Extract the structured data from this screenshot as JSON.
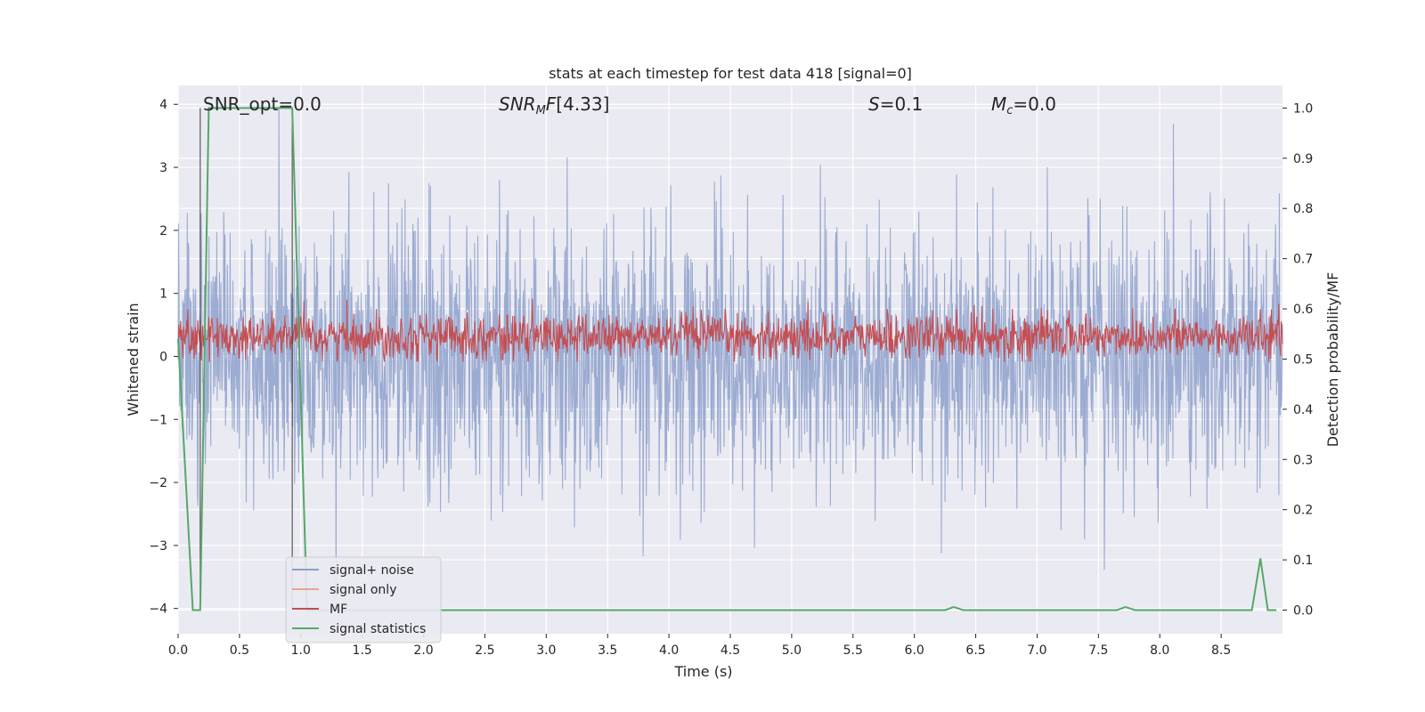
{
  "chart_data": {
    "type": "line",
    "title": "stats at each timestep for test data 418 [signal=0]",
    "xlabel": "Time (s)",
    "ylabel": "Whitened strain",
    "y2label": "Detection probability/MF",
    "xlim": [
      0.0,
      9.0
    ],
    "ylim": [
      -4.4,
      4.3
    ],
    "y2lim": [
      -0.047,
      1.045
    ],
    "xticks": [
      "0.0",
      "0.5",
      "1.0",
      "1.5",
      "2.0",
      "2.5",
      "3.0",
      "3.5",
      "4.0",
      "4.5",
      "5.0",
      "5.5",
      "6.0",
      "6.5",
      "7.0",
      "7.5",
      "8.0",
      "8.5"
    ],
    "yticks": [
      "4",
      "3",
      "2",
      "1",
      "0",
      "−1",
      "−2",
      "−3",
      "−4"
    ],
    "y2ticks": [
      "1.0",
      "0.9",
      "0.8",
      "0.7",
      "0.6",
      "0.5",
      "0.4",
      "0.3",
      "0.2",
      "0.1",
      "0.0"
    ],
    "annotations": {
      "snr_opt": "SNR_opt=0.0",
      "snr_mf": "[4.33]",
      "s": "=0.1",
      "mc": "=0.0"
    },
    "grid": true,
    "legend_position": "lower-left",
    "series": [
      {
        "name": "signal+ noise",
        "color": "#8da0cb",
        "axis": "left",
        "description_values": "noise, roughly uniform, amplitude up to about ±4"
      },
      {
        "name": "signal only",
        "color": "#e8a58a",
        "axis": "left",
        "values": []
      },
      {
        "name": "MF",
        "color": "#c44e52",
        "axis": "right",
        "description_values": "noisy band between about 0.50 and 0.62"
      },
      {
        "name": "signal statistics",
        "color": "#55a868",
        "axis": "right",
        "points": [
          [
            0.0,
            0.54
          ],
          [
            0.12,
            0.0
          ],
          [
            0.18,
            0.0
          ],
          [
            0.25,
            1.0
          ],
          [
            0.93,
            1.0
          ],
          [
            1.05,
            0.0
          ],
          [
            6.25,
            0.0
          ],
          [
            6.32,
            0.006
          ],
          [
            6.4,
            0.0
          ],
          [
            7.65,
            0.0
          ],
          [
            7.72,
            0.006
          ],
          [
            7.8,
            0.0
          ],
          [
            8.75,
            0.0
          ],
          [
            8.82,
            0.103
          ],
          [
            8.88,
            0.0
          ],
          [
            8.95,
            0.0
          ]
        ]
      }
    ],
    "vertical_lines": [
      0.18,
      0.93
    ]
  }
}
